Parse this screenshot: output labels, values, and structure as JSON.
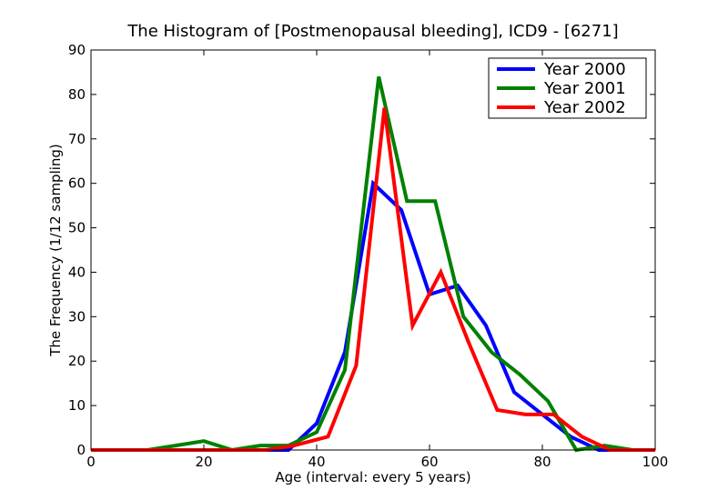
{
  "chart_data": {
    "type": "line",
    "title": "The Histogram of [Postmenopausal bleeding], ICD9 - [6271]",
    "xlabel": "Age (interval: every 5 years)",
    "ylabel": "The Frequency (1/12 sampling)",
    "xlim": [
      0,
      100
    ],
    "ylim": [
      0,
      90
    ],
    "xticks": [
      0,
      20,
      40,
      60,
      80,
      100
    ],
    "yticks": [
      0,
      10,
      20,
      30,
      40,
      50,
      60,
      70,
      80,
      90
    ],
    "grid": false,
    "legend_position": "top-right",
    "series": [
      {
        "name": "Year 2000",
        "color": "#0000ff",
        "x": [
          0,
          5,
          10,
          15,
          20,
          25,
          30,
          35,
          40,
          45,
          50,
          55,
          60,
          65,
          70,
          75,
          80,
          85,
          90,
          95,
          100
        ],
        "y": [
          0,
          0,
          0,
          0,
          0,
          0,
          0,
          0,
          6,
          22,
          60,
          54,
          35,
          37,
          28,
          13,
          8,
          3,
          0,
          0,
          0
        ]
      },
      {
        "name": "Year 2001",
        "color": "#008000",
        "x": [
          0,
          5,
          10,
          15,
          20,
          25,
          30,
          35,
          40,
          45,
          51,
          56,
          61,
          66,
          71,
          76,
          81,
          86,
          91,
          96,
          100
        ],
        "y": [
          0,
          0,
          0,
          1,
          2,
          0,
          1,
          1,
          4,
          18,
          84,
          56,
          56,
          30,
          22,
          17,
          11,
          0,
          1,
          0,
          0
        ]
      },
      {
        "name": "Year 2002",
        "color": "#ff0000",
        "x": [
          0,
          5,
          10,
          15,
          20,
          26,
          31,
          36,
          42,
          47,
          52,
          57,
          62,
          67,
          72,
          77,
          82,
          87,
          92,
          97,
          100
        ],
        "y": [
          0,
          0,
          0,
          0,
          0,
          0,
          0,
          1,
          3,
          19,
          77,
          28,
          40,
          24,
          9,
          8,
          8,
          3,
          0,
          0,
          0
        ]
      }
    ]
  }
}
